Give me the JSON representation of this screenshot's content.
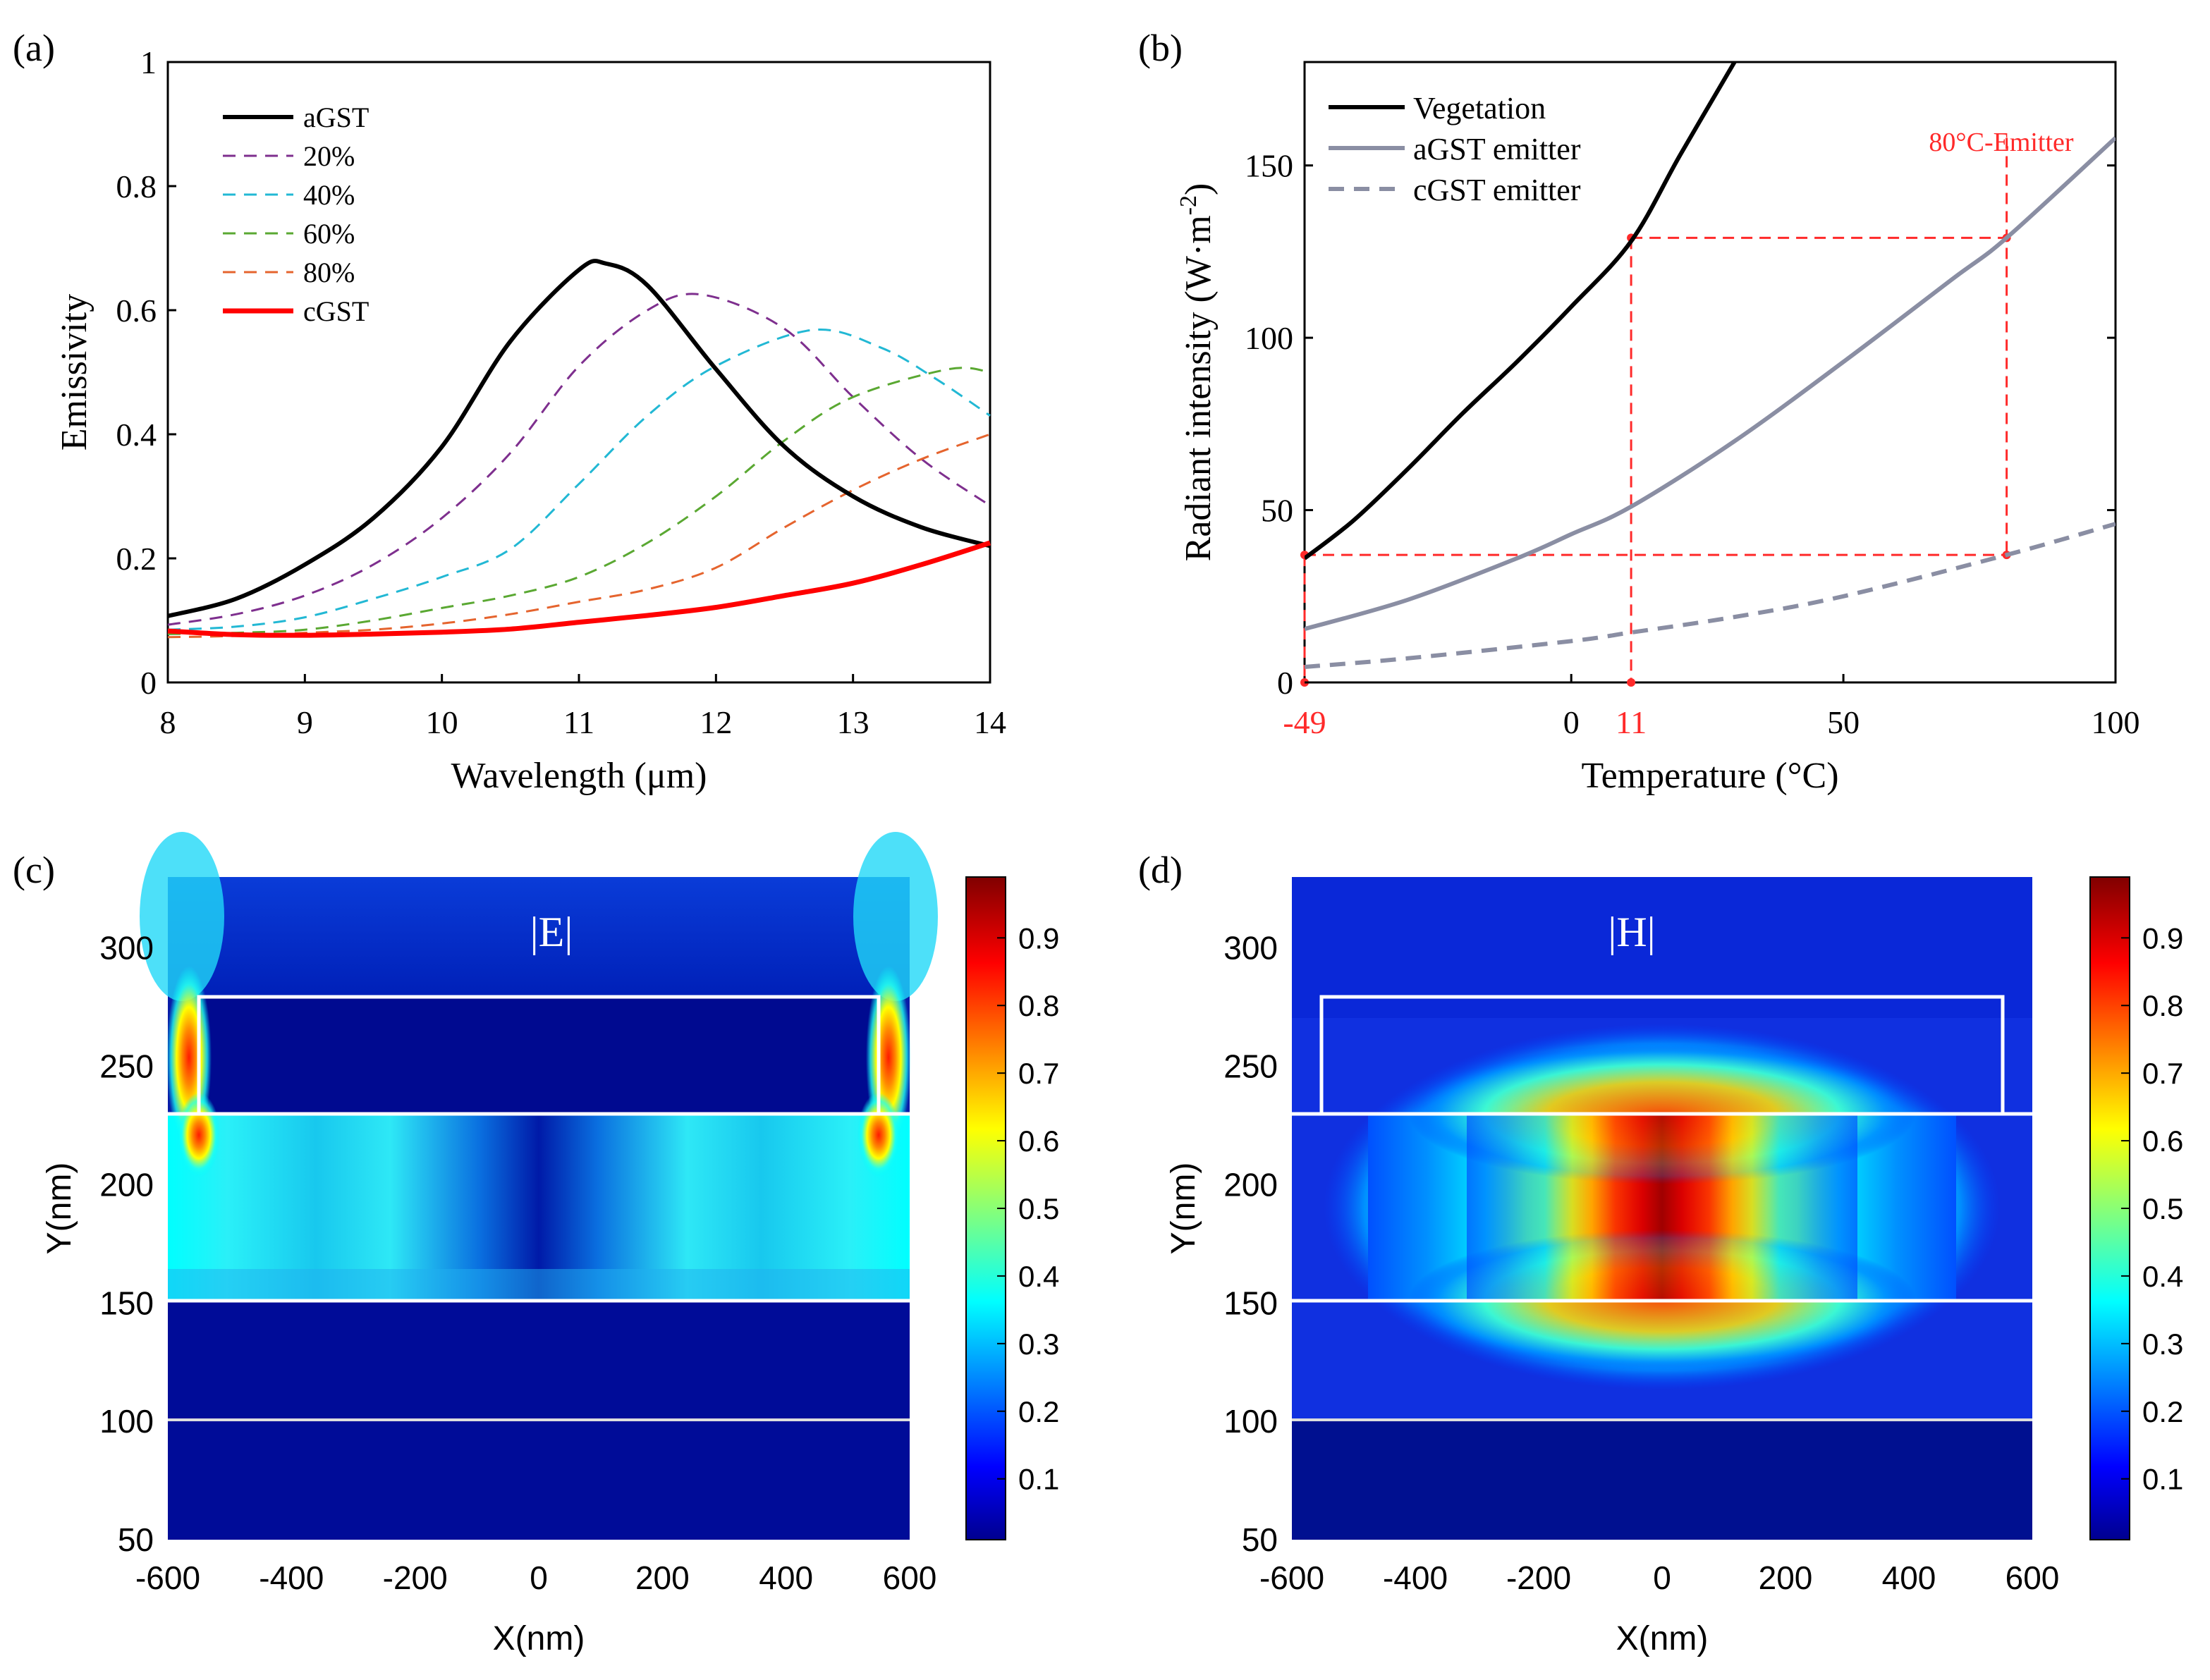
{
  "colors": {
    "agst": "#000000",
    "p20": "#7e2f8e",
    "p40": "#22b8d4",
    "p60": "#5aa832",
    "p80": "#e5642e",
    "cgst": "#ff0000",
    "grey": "#8a8ea3",
    "guide": "#ff2a2a"
  },
  "chart_data": [
    {
      "panel": "(a)",
      "type": "line",
      "xlabel": "Wavelength (μm)",
      "ylabel": "Emissivity",
      "xlim": [
        8,
        14
      ],
      "ylim": [
        0,
        1
      ],
      "xticks": [
        "8",
        "9",
        "10",
        "11",
        "12",
        "13",
        "14"
      ],
      "yticks": [
        "0",
        "0.2",
        "0.4",
        "0.6",
        "0.8",
        "1"
      ],
      "legend_position": "top-left",
      "series": [
        {
          "name": "aGST",
          "x": [
            8,
            8.5,
            9,
            9.5,
            10,
            10.5,
            11,
            11.2,
            11.5,
            12,
            12.5,
            13,
            13.5,
            14
          ],
          "values": [
            0.107,
            0.135,
            0.19,
            0.265,
            0.38,
            0.55,
            0.665,
            0.675,
            0.64,
            0.505,
            0.38,
            0.3,
            0.25,
            0.22
          ]
        },
        {
          "name": "20%",
          "x": [
            8,
            8.5,
            9,
            9.5,
            10,
            10.5,
            11,
            11.5,
            11.9,
            12.5,
            13,
            13.5,
            14
          ],
          "values": [
            0.093,
            0.11,
            0.14,
            0.19,
            0.265,
            0.37,
            0.51,
            0.6,
            0.625,
            0.57,
            0.46,
            0.36,
            0.285
          ]
        },
        {
          "name": "40%",
          "x": [
            8,
            8.5,
            9,
            9.5,
            10,
            10.5,
            11,
            11.5,
            12,
            12.7,
            13.2,
            13.6,
            14
          ],
          "values": [
            0.085,
            0.09,
            0.105,
            0.135,
            0.17,
            0.215,
            0.32,
            0.43,
            0.51,
            0.568,
            0.54,
            0.49,
            0.43
          ]
        },
        {
          "name": "60%",
          "x": [
            8,
            8.5,
            9,
            9.5,
            10,
            10.5,
            11,
            11.5,
            12,
            12.5,
            13,
            13.7,
            14
          ],
          "values": [
            0.078,
            0.08,
            0.085,
            0.1,
            0.12,
            0.14,
            0.17,
            0.225,
            0.3,
            0.39,
            0.46,
            0.505,
            0.5
          ]
        },
        {
          "name": "80%",
          "x": [
            8,
            8.5,
            9,
            9.5,
            10,
            10.5,
            11,
            11.5,
            12,
            12.5,
            13,
            13.5,
            14
          ],
          "values": [
            0.073,
            0.075,
            0.08,
            0.085,
            0.095,
            0.11,
            0.13,
            0.15,
            0.185,
            0.25,
            0.31,
            0.36,
            0.4
          ]
        },
        {
          "name": "cGST",
          "x": [
            8,
            8.5,
            9,
            9.5,
            10,
            10.5,
            11,
            11.5,
            12,
            12.5,
            13,
            13.5,
            14
          ],
          "values": [
            0.083,
            0.077,
            0.076,
            0.078,
            0.081,
            0.086,
            0.097,
            0.108,
            0.121,
            0.14,
            0.16,
            0.19,
            0.225
          ]
        }
      ]
    },
    {
      "panel": "(b)",
      "type": "line",
      "xlabel": "Temperature (°C)",
      "ylabel": "Radiant intensity (W·m",
      "ylabel_exp": "-2",
      "ylabel_end": ")",
      "xlim": [
        -49,
        100
      ],
      "ylim": [
        0,
        180
      ],
      "xticks": [
        "0",
        "50",
        "100"
      ],
      "yticks": [
        "0",
        "50",
        "100",
        "150"
      ],
      "highlight_ticks": [
        "-49",
        "11"
      ],
      "annotation": "80°C-Emitter",
      "legend_position": "top-left",
      "series": [
        {
          "name": "Vegetation",
          "style": "solid",
          "x": [
            -49,
            -40,
            -30,
            -20,
            -10,
            0,
            11,
            20,
            30
          ],
          "values": [
            36,
            47,
            62,
            78,
            93,
            109,
            128,
            153,
            180
          ]
        },
        {
          "name": "aGST emitter",
          "style": "solid",
          "x": [
            -49,
            -30,
            -10,
            0,
            11,
            30,
            50,
            70,
            80,
            100
          ],
          "values": [
            15.5,
            24,
            36,
            43,
            51,
            70,
            93,
            117,
            129,
            158
          ]
        },
        {
          "name": "cGST emitter",
          "style": "dashed",
          "x": [
            -49,
            -30,
            0,
            11,
            30,
            50,
            80,
            100
          ],
          "values": [
            4.5,
            7,
            12,
            14.5,
            19,
            25,
            37,
            46
          ]
        }
      ],
      "guides": [
        {
          "x": -49,
          "y": 37,
          "to_x": 80
        },
        {
          "x": 11,
          "y": 129,
          "to_x": 80
        },
        {
          "x": 80,
          "y": 37
        },
        {
          "x": 80,
          "y": 129
        }
      ]
    },
    {
      "panel": "(c)",
      "type": "heatmap",
      "title": "|E|",
      "xlabel": "X(nm)",
      "ylabel": "Y(nm)",
      "xlim": [
        -600,
        600
      ],
      "ylim": [
        50,
        330
      ],
      "xticks": [
        "-600",
        "-400",
        "-200",
        "0",
        "200",
        "400",
        "600"
      ],
      "yticks": [
        "50",
        "100",
        "150",
        "200",
        "250",
        "300"
      ],
      "colorbar_ticks": [
        "0.1",
        "0.2",
        "0.3",
        "0.4",
        "0.5",
        "0.6",
        "0.7",
        "0.8",
        "0.9"
      ]
    },
    {
      "panel": "(d)",
      "type": "heatmap",
      "title": "|H|",
      "xlabel": "X(nm)",
      "ylabel": "Y(nm)",
      "xlim": [
        -600,
        600
      ],
      "ylim": [
        50,
        330
      ],
      "xticks": [
        "-600",
        "-400",
        "-200",
        "0",
        "200",
        "400",
        "600"
      ],
      "yticks": [
        "50",
        "100",
        "150",
        "200",
        "250",
        "300"
      ],
      "colorbar_ticks": [
        "0.1",
        "0.2",
        "0.3",
        "0.4",
        "0.5",
        "0.6",
        "0.7",
        "0.8",
        "0.9"
      ]
    }
  ]
}
